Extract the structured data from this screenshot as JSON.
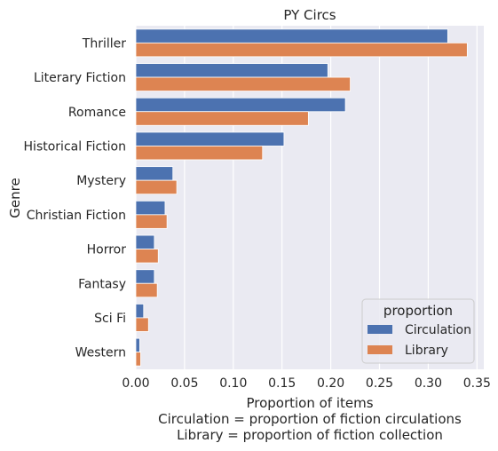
{
  "chart_data": {
    "type": "bar",
    "orientation": "horizontal",
    "title": "PY Circs",
    "ylabel": "Genre",
    "xlabel_lines": [
      "Proportion of items",
      "Circulation = proportion of fiction circulations",
      "Library = proportion of fiction collection"
    ],
    "categories": [
      "Thriller",
      "Literary Fiction",
      "Romance",
      "Historical Fiction",
      "Mystery",
      "Christian Fiction",
      "Horror",
      "Fantasy",
      "Sci Fi",
      "Western"
    ],
    "series": [
      {
        "name": "Circulation",
        "color": "#4c72b0",
        "values": [
          0.32,
          0.197,
          0.215,
          0.152,
          0.038,
          0.03,
          0.019,
          0.019,
          0.008,
          0.004
        ]
      },
      {
        "name": "Library",
        "color": "#dd8452",
        "values": [
          0.34,
          0.22,
          0.177,
          0.13,
          0.042,
          0.032,
          0.023,
          0.022,
          0.013,
          0.005
        ]
      }
    ],
    "xticks": [
      "0.00",
      "0.05",
      "0.10",
      "0.15",
      "0.20",
      "0.25",
      "0.30",
      "0.35"
    ],
    "xtick_values": [
      0,
      0.05,
      0.1,
      0.15,
      0.2,
      0.25,
      0.3,
      0.35
    ],
    "xlim": [
      0,
      0.357
    ],
    "grid": true,
    "background": "#eaeaf2",
    "legend": {
      "title": "proportion",
      "placement": "lower-right"
    }
  }
}
